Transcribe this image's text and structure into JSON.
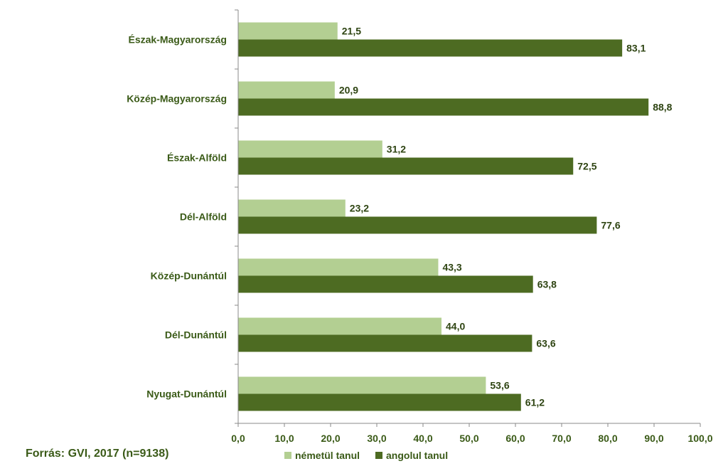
{
  "chart_data": {
    "type": "bar",
    "orientation": "horizontal",
    "categories": [
      "Észak-Magyarország",
      "Közép-Magyarország",
      "Észak-Alföld",
      "Dél-Alföld",
      "Közép-Dunántúl",
      "Dél-Dunántúl",
      "Nyugat-Dunántúl"
    ],
    "series": [
      {
        "name": "németül tanul",
        "color": "#b3cf92",
        "values": [
          21.5,
          20.9,
          31.2,
          23.2,
          43.3,
          44.0,
          53.6
        ],
        "value_labels": [
          "21,5",
          "20,9",
          "31,2",
          "23,2",
          "43,3",
          "44,0",
          "53,6"
        ]
      },
      {
        "name": "angolul tanul",
        "color": "#4d6b22",
        "values": [
          83.1,
          88.8,
          72.5,
          77.6,
          63.8,
          63.6,
          61.2
        ],
        "value_labels": [
          "83,1",
          "88,8",
          "72,5",
          "77,6",
          "63,8",
          "63,6",
          "61,2"
        ]
      }
    ],
    "xlim": [
      0,
      100
    ],
    "ticks": [
      0,
      10,
      20,
      30,
      40,
      50,
      60,
      70,
      80,
      90,
      100
    ],
    "tick_labels": [
      "0,0",
      "10,0",
      "20,0",
      "30,0",
      "40,0",
      "50,0",
      "60,0",
      "70,0",
      "80,0",
      "90,0",
      "100,0"
    ],
    "grid": false,
    "legend_position": "bottom",
    "title": "",
    "xlabel": "",
    "ylabel": ""
  },
  "source_note": "Forrás: GVI, 2017 (n=9138)"
}
